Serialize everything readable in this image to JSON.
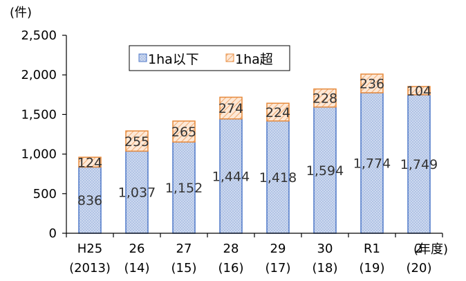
{
  "chart_data": {
    "type": "bar",
    "stacked": true,
    "y_unit": "(件)",
    "x_unit": "(年度)",
    "categories": [
      "H25",
      "26",
      "27",
      "28",
      "29",
      "30",
      "R1",
      "2"
    ],
    "categories_sub": [
      "(2013)",
      "(14)",
      "(15)",
      "(16)",
      "(17)",
      "(18)",
      "(19)",
      "(20)"
    ],
    "ylim": [
      0,
      2500
    ],
    "yticks": [
      "0",
      "500",
      "1,000",
      "1,500",
      "2,000",
      "2,500"
    ],
    "ytick_values": [
      0,
      500,
      1000,
      1500,
      2000,
      2500
    ],
    "grid": false,
    "legend_position": "top-left",
    "series": [
      {
        "name": "1ha以下",
        "values": [
          836,
          1037,
          1152,
          1444,
          1418,
          1594,
          1774,
          1749
        ],
        "labels": [
          "836",
          "1,037",
          "1,152",
          "1,444",
          "1,418",
          "1,594",
          "1,774",
          "1,749"
        ],
        "color": "#c9d7ee",
        "edge": "#4f78c8",
        "pattern": "dots"
      },
      {
        "name": "1ha超",
        "values": [
          124,
          255,
          265,
          274,
          224,
          228,
          236,
          104
        ],
        "labels": [
          "124",
          "255",
          "265",
          "274",
          "224",
          "228",
          "236",
          "104"
        ],
        "color": "#fbe6d4",
        "edge": "#e68a3c",
        "pattern": "hatch"
      }
    ]
  }
}
